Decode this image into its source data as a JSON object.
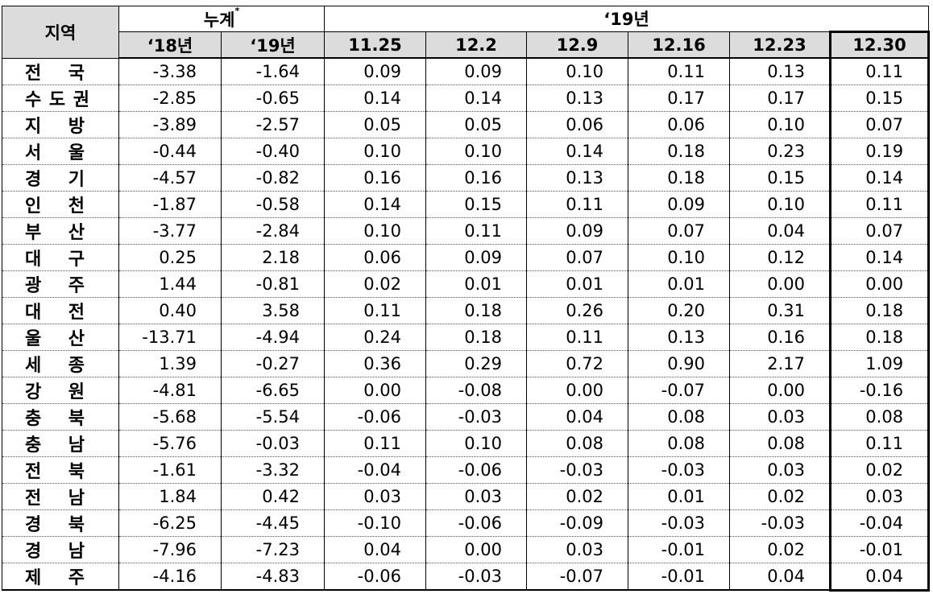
{
  "header": {
    "region": "지역",
    "cumulative": "누계",
    "cumulative_note": "*",
    "year19": "‘19년",
    "sub": [
      "‘18년",
      "‘19년",
      "11.25",
      "12.2",
      "12.9",
      "12.16",
      "12.23",
      "12.30"
    ]
  },
  "rows": [
    {
      "region": "전 국",
      "v": [
        "-3.38",
        "-1.64",
        "0.09",
        "0.09",
        "0.10",
        "0.11",
        "0.13",
        "0.11"
      ]
    },
    {
      "region": "수도권",
      "v": [
        "-2.85",
        "-0.65",
        "0.14",
        "0.14",
        "0.13",
        "0.17",
        "0.17",
        "0.15"
      ]
    },
    {
      "region": "지 방",
      "v": [
        "-3.89",
        "-2.57",
        "0.05",
        "0.05",
        "0.06",
        "0.06",
        "0.10",
        "0.07"
      ]
    },
    {
      "region": "서 울",
      "v": [
        "-0.44",
        "-0.40",
        "0.10",
        "0.10",
        "0.14",
        "0.18",
        "0.23",
        "0.19"
      ]
    },
    {
      "region": "경 기",
      "v": [
        "-4.57",
        "-0.82",
        "0.16",
        "0.16",
        "0.13",
        "0.18",
        "0.15",
        "0.14"
      ]
    },
    {
      "region": "인 천",
      "v": [
        "-1.87",
        "-0.58",
        "0.14",
        "0.15",
        "0.11",
        "0.09",
        "0.10",
        "0.11"
      ]
    },
    {
      "region": "부 산",
      "v": [
        "-3.77",
        "-2.84",
        "0.10",
        "0.11",
        "0.09",
        "0.07",
        "0.04",
        "0.07"
      ]
    },
    {
      "region": "대 구",
      "v": [
        "0.25",
        "2.18",
        "0.06",
        "0.09",
        "0.07",
        "0.10",
        "0.12",
        "0.14"
      ]
    },
    {
      "region": "광 주",
      "v": [
        "1.44",
        "-0.81",
        "0.02",
        "0.01",
        "0.01",
        "0.01",
        "0.00",
        "0.00"
      ]
    },
    {
      "region": "대 전",
      "v": [
        "0.40",
        "3.58",
        "0.11",
        "0.18",
        "0.26",
        "0.20",
        "0.31",
        "0.18"
      ]
    },
    {
      "region": "울 산",
      "v": [
        "-13.71",
        "-4.94",
        "0.24",
        "0.18",
        "0.11",
        "0.13",
        "0.16",
        "0.18"
      ]
    },
    {
      "region": "세 종",
      "v": [
        "1.39",
        "-0.27",
        "0.36",
        "0.29",
        "0.72",
        "0.90",
        "2.17",
        "1.09"
      ]
    },
    {
      "region": "강 원",
      "v": [
        "-4.81",
        "-6.65",
        "0.00",
        "-0.08",
        "0.00",
        "-0.07",
        "0.00",
        "-0.16"
      ]
    },
    {
      "region": "충 북",
      "v": [
        "-5.68",
        "-5.54",
        "-0.06",
        "-0.03",
        "0.04",
        "0.08",
        "0.03",
        "0.08"
      ]
    },
    {
      "region": "충 남",
      "v": [
        "-5.76",
        "-0.03",
        "0.11",
        "0.10",
        "0.08",
        "0.08",
        "0.08",
        "0.11"
      ]
    },
    {
      "region": "전 북",
      "v": [
        "-1.61",
        "-3.32",
        "-0.04",
        "-0.06",
        "-0.03",
        "-0.03",
        "0.03",
        "0.02"
      ]
    },
    {
      "region": "전 남",
      "v": [
        "1.84",
        "0.42",
        "0.03",
        "0.03",
        "0.02",
        "0.01",
        "0.02",
        "0.03"
      ]
    },
    {
      "region": "경 북",
      "v": [
        "-6.25",
        "-4.45",
        "-0.10",
        "-0.06",
        "-0.09",
        "-0.03",
        "-0.03",
        "-0.04"
      ]
    },
    {
      "region": "경 남",
      "v": [
        "-7.96",
        "-7.23",
        "0.04",
        "0.00",
        "0.03",
        "-0.01",
        "0.02",
        "-0.01"
      ]
    },
    {
      "region": "제 주",
      "v": [
        "-4.16",
        "-4.83",
        "-0.06",
        "-0.03",
        "-0.07",
        "-0.01",
        "0.04",
        "0.04"
      ]
    }
  ]
}
